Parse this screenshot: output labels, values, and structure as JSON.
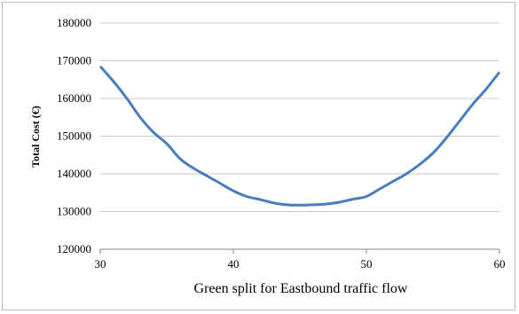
{
  "chart_data": {
    "type": "line",
    "title": "",
    "xlabel": "Green split for Eastbound traffic flow",
    "ylabel": "Total Cost (€)",
    "xlim": [
      30,
      60
    ],
    "ylim": [
      120000,
      180000
    ],
    "x_ticks": [
      "30",
      "40",
      "50",
      "60"
    ],
    "y_ticks": [
      "120000",
      "130000",
      "140000",
      "150000",
      "160000",
      "170000",
      "180000"
    ],
    "grid": "horizontal",
    "legend": "none",
    "series": [
      {
        "color": "#4a7ebb",
        "x": [
          30,
          31,
          32,
          33,
          34,
          35,
          36,
          37,
          38,
          39,
          40,
          41,
          42,
          43,
          44,
          45,
          46,
          47,
          48,
          49,
          50,
          51,
          52,
          53,
          54,
          55,
          56,
          57,
          58,
          59,
          60
        ],
        "y": [
          168500,
          164500,
          160000,
          155000,
          151000,
          148000,
          144000,
          141500,
          139500,
          137500,
          135500,
          134000,
          133200,
          132300,
          131800,
          131700,
          131800,
          132000,
          132500,
          133300,
          134000,
          136000,
          138000,
          140000,
          142500,
          145500,
          149500,
          154000,
          158500,
          162500,
          167000
        ]
      }
    ]
  }
}
